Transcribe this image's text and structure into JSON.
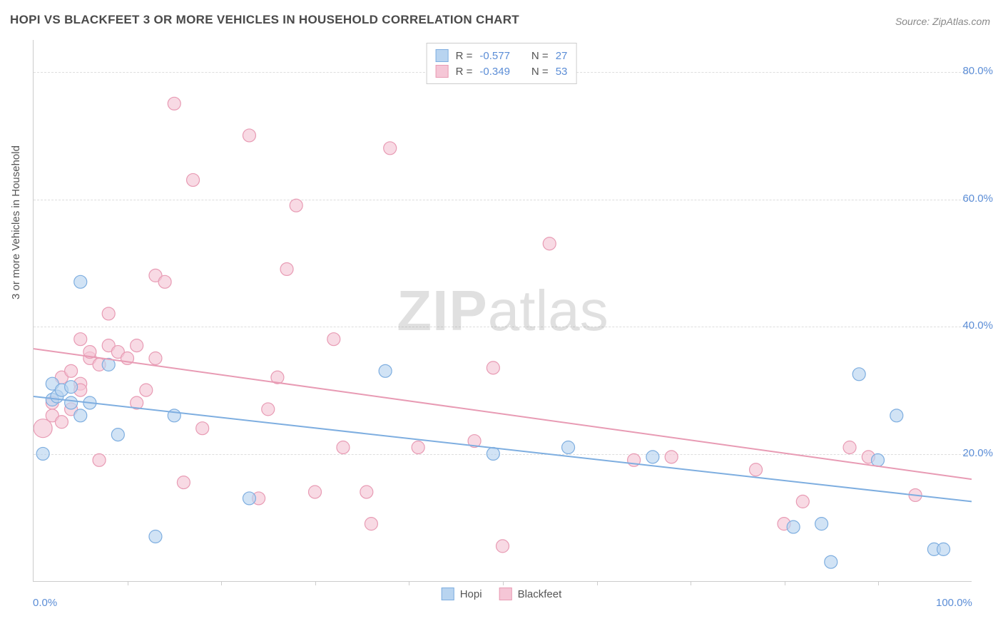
{
  "title": "HOPI VS BLACKFEET 3 OR MORE VEHICLES IN HOUSEHOLD CORRELATION CHART",
  "source": "Source: ZipAtlas.com",
  "y_axis_label": "3 or more Vehicles in Household",
  "watermark_zip": "ZIP",
  "watermark_atlas": "atlas",
  "chart": {
    "type": "scatter",
    "xlim": [
      0,
      100
    ],
    "ylim": [
      0,
      85
    ],
    "x_ticks_major": [
      0,
      100
    ],
    "x_ticks_minor": [
      10,
      20,
      30,
      40,
      50,
      60,
      70,
      80,
      90
    ],
    "x_tick_labels": {
      "0": "0.0%",
      "100": "100.0%"
    },
    "y_gridlines": [
      20,
      40,
      60,
      80
    ],
    "y_tick_labels": {
      "20": "20.0%",
      "40": "40.0%",
      "60": "60.0%",
      "80": "80.0%"
    },
    "background_color": "#ffffff",
    "grid_color": "#dddddd",
    "axis_color": "#cccccc",
    "marker_radius": 9,
    "marker_radius_large": 13,
    "line_width": 2,
    "series": [
      {
        "name": "Hopi",
        "color_fill": "#b8d4f0",
        "color_stroke": "#7eaee0",
        "fill_opacity": 0.65,
        "r_value": "-0.577",
        "n_value": "27",
        "trend": {
          "x1": 0,
          "y1": 29,
          "x2": 100,
          "y2": 12.5
        },
        "points": [
          {
            "x": 1,
            "y": 20
          },
          {
            "x": 2,
            "y": 28.5
          },
          {
            "x": 2,
            "y": 31
          },
          {
            "x": 2.5,
            "y": 29
          },
          {
            "x": 3,
            "y": 30
          },
          {
            "x": 4,
            "y": 28
          },
          {
            "x": 4,
            "y": 30.5
          },
          {
            "x": 5,
            "y": 47
          },
          {
            "x": 5,
            "y": 26
          },
          {
            "x": 6,
            "y": 28
          },
          {
            "x": 8,
            "y": 34
          },
          {
            "x": 9,
            "y": 23
          },
          {
            "x": 15,
            "y": 26
          },
          {
            "x": 13,
            "y": 7
          },
          {
            "x": 23,
            "y": 13
          },
          {
            "x": 37.5,
            "y": 33
          },
          {
            "x": 49,
            "y": 20
          },
          {
            "x": 57,
            "y": 21
          },
          {
            "x": 66,
            "y": 19.5
          },
          {
            "x": 85,
            "y": 3
          },
          {
            "x": 81,
            "y": 8.5
          },
          {
            "x": 84,
            "y": 9
          },
          {
            "x": 90,
            "y": 19
          },
          {
            "x": 92,
            "y": 26
          },
          {
            "x": 88,
            "y": 32.5
          },
          {
            "x": 96,
            "y": 5
          },
          {
            "x": 97,
            "y": 5
          }
        ]
      },
      {
        "name": "Blackfeet",
        "color_fill": "#f5c6d6",
        "color_stroke": "#e89bb4",
        "fill_opacity": 0.65,
        "r_value": "-0.349",
        "n_value": "53",
        "trend": {
          "x1": 0,
          "y1": 36.5,
          "x2": 100,
          "y2": 16
        },
        "points": [
          {
            "x": 1,
            "y": 24,
            "r": 13
          },
          {
            "x": 2,
            "y": 28
          },
          {
            "x": 2,
            "y": 26
          },
          {
            "x": 3,
            "y": 25
          },
          {
            "x": 3,
            "y": 32
          },
          {
            "x": 4,
            "y": 33
          },
          {
            "x": 4,
            "y": 27
          },
          {
            "x": 5,
            "y": 31
          },
          {
            "x": 5,
            "y": 38
          },
          {
            "x": 5,
            "y": 30
          },
          {
            "x": 6,
            "y": 35
          },
          {
            "x": 6,
            "y": 36
          },
          {
            "x": 7,
            "y": 34
          },
          {
            "x": 7,
            "y": 19
          },
          {
            "x": 8,
            "y": 37
          },
          {
            "x": 8,
            "y": 42
          },
          {
            "x": 9,
            "y": 36
          },
          {
            "x": 10,
            "y": 35
          },
          {
            "x": 11,
            "y": 37
          },
          {
            "x": 11,
            "y": 28
          },
          {
            "x": 12,
            "y": 30
          },
          {
            "x": 13,
            "y": 35
          },
          {
            "x": 13,
            "y": 48
          },
          {
            "x": 14,
            "y": 47
          },
          {
            "x": 15,
            "y": 75
          },
          {
            "x": 16,
            "y": 15.5
          },
          {
            "x": 17,
            "y": 63
          },
          {
            "x": 18,
            "y": 24
          },
          {
            "x": 23,
            "y": 70
          },
          {
            "x": 24,
            "y": 13
          },
          {
            "x": 25,
            "y": 27
          },
          {
            "x": 26,
            "y": 32
          },
          {
            "x": 27,
            "y": 49
          },
          {
            "x": 28,
            "y": 59
          },
          {
            "x": 30,
            "y": 14
          },
          {
            "x": 32,
            "y": 38
          },
          {
            "x": 33,
            "y": 21
          },
          {
            "x": 35.5,
            "y": 14
          },
          {
            "x": 36,
            "y": 9
          },
          {
            "x": 38,
            "y": 68
          },
          {
            "x": 41,
            "y": 21
          },
          {
            "x": 47,
            "y": 22
          },
          {
            "x": 49,
            "y": 33.5
          },
          {
            "x": 50,
            "y": 5.5
          },
          {
            "x": 55,
            "y": 53
          },
          {
            "x": 64,
            "y": 19
          },
          {
            "x": 68,
            "y": 19.5
          },
          {
            "x": 77,
            "y": 17.5
          },
          {
            "x": 80,
            "y": 9
          },
          {
            "x": 82,
            "y": 12.5
          },
          {
            "x": 87,
            "y": 21
          },
          {
            "x": 89,
            "y": 19.5
          },
          {
            "x": 94,
            "y": 13.5
          }
        ]
      }
    ]
  },
  "legend_top": {
    "r_label": "R =",
    "n_label": "N ="
  },
  "legend_bottom": {
    "items": [
      "Hopi",
      "Blackfeet"
    ]
  }
}
